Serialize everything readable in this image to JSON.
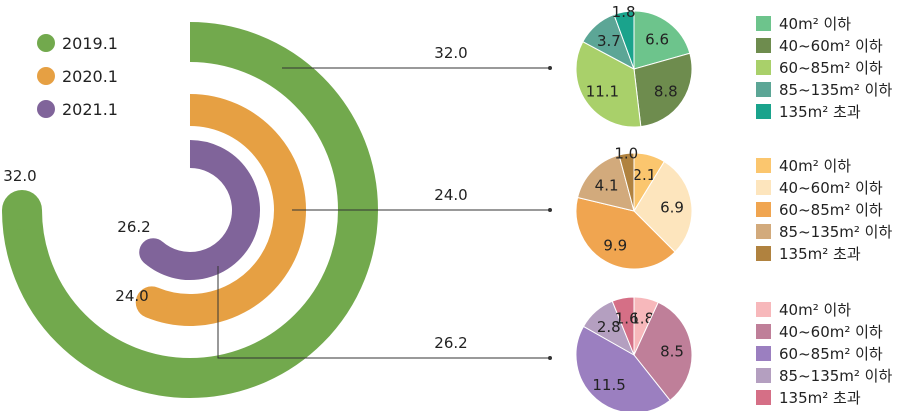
{
  "chart_data": [
    {
      "type": "radial-bar",
      "legend": [
        {
          "label": "2019.1",
          "color": "#72a94d"
        },
        {
          "label": "2020.1",
          "color": "#e6a043"
        },
        {
          "label": "2021.1",
          "color": "#80649a"
        }
      ],
      "series": [
        {
          "name": "2019.1",
          "value": 32.0,
          "label": "32.0",
          "color": "#72a94d"
        },
        {
          "name": "2020.1",
          "value": 24.0,
          "label": "24.0",
          "color": "#e6a043"
        },
        {
          "name": "2021.1",
          "value": 26.2,
          "label": "26.2",
          "color": "#80649a"
        }
      ]
    },
    {
      "type": "pie",
      "series_name": "2019.1",
      "callout": "32.0",
      "slices": [
        {
          "label": "40m² 이하",
          "value": 6.6,
          "value_label": "6.6",
          "color": "#6dc48c"
        },
        {
          "label": "40~60m² 이하",
          "value": 8.8,
          "value_label": "8.8",
          "color": "#6e8c4e"
        },
        {
          "label": "60~85m² 이하",
          "value": 11.1,
          "value_label": "11.1",
          "color": "#a9d06a"
        },
        {
          "label": "85~135m² 이하",
          "value": 3.7,
          "value_label": "3.7",
          "color": "#5ca696"
        },
        {
          "label": "135m² 초과",
          "value": 1.8,
          "value_label": "1.8",
          "color": "#1aa38c"
        }
      ]
    },
    {
      "type": "pie",
      "series_name": "2020.1",
      "callout": "24.0",
      "slices": [
        {
          "label": "40m² 이하",
          "value": 2.1,
          "value_label": "2.1",
          "color": "#fbc66e"
        },
        {
          "label": "40~60m² 이하",
          "value": 6.9,
          "value_label": "6.9",
          "color": "#fde5bd"
        },
        {
          "label": "60~85m² 이하",
          "value": 9.9,
          "value_label": "9.9",
          "color": "#f0a550"
        },
        {
          "label": "85~135m² 이하",
          "value": 4.1,
          "value_label": "4.1",
          "color": "#d2aa7c"
        },
        {
          "label": "135m² 초과",
          "value": 1.0,
          "value_label": "1.0",
          "color": "#b0823f"
        }
      ]
    },
    {
      "type": "pie",
      "series_name": "2021.1",
      "callout": "26.2",
      "slices": [
        {
          "label": "40m² 이하",
          "value": 1.8,
          "value_label": "1.8",
          "color": "#f7b8bb"
        },
        {
          "label": "40~60m² 이하",
          "value": 8.5,
          "value_label": "8.5",
          "color": "#bf7f99"
        },
        {
          "label": "60~85m² 이하",
          "value": 11.5,
          "value_label": "11.5",
          "color": "#9b7fc0"
        },
        {
          "label": "85~135m² 이하",
          "value": 2.8,
          "value_label": "2.8",
          "color": "#b49fc0"
        },
        {
          "label": "135m² 초과",
          "value": 1.6,
          "value_label": "1.6",
          "color": "#d56f86"
        }
      ]
    }
  ]
}
